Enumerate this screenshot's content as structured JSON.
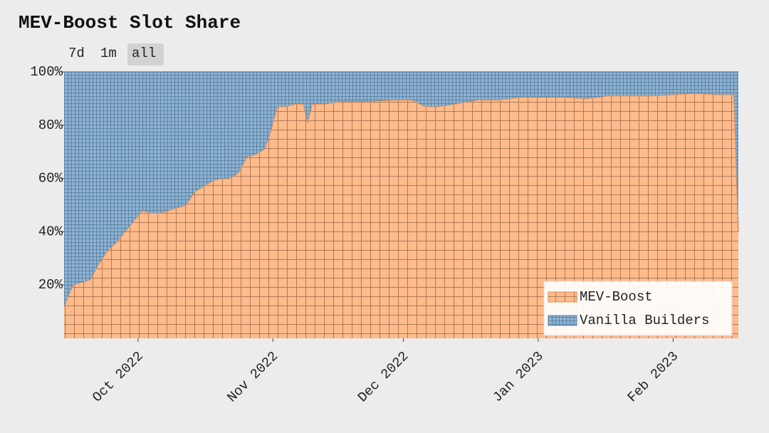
{
  "chart_data": {
    "type": "stacked_area",
    "title": "MEV-Boost Slot Share",
    "range_buttons": [
      "7d",
      "1m",
      "all"
    ],
    "x": [
      0,
      2,
      4,
      6,
      8,
      10,
      12,
      14,
      16,
      18,
      20,
      22,
      24,
      26,
      28,
      30,
      32,
      34,
      36,
      38,
      40,
      42,
      44,
      46,
      47,
      49,
      51,
      53,
      55,
      56,
      57,
      60,
      64,
      70,
      76,
      80,
      83,
      86,
      90,
      95,
      100,
      105,
      110,
      115,
      120,
      125,
      130,
      135,
      140,
      145,
      150,
      154,
      155
    ],
    "series": [
      {
        "name": "MEV-Boost",
        "color": "#ffbb8c",
        "line_color": "#e08a4e",
        "values": [
          12,
          20,
          21,
          22,
          28,
          33,
          36,
          40,
          44,
          48,
          47,
          47,
          48,
          49,
          50,
          55,
          57,
          59,
          60,
          60,
          62,
          68,
          69,
          71,
          75,
          87,
          87,
          88,
          88,
          81,
          88,
          88,
          89,
          89,
          89.5,
          89.5,
          87,
          87,
          88,
          89.5,
          89.5,
          90.5,
          90.5,
          90.5,
          90,
          91,
          91,
          91,
          91.5,
          92,
          91.5,
          91.5,
          40
        ]
      },
      {
        "name": "Vanilla Builders",
        "color": "#8db3d3",
        "line_color": "#5b87b0",
        "values": [
          88,
          80,
          79,
          78,
          72,
          67,
          64,
          60,
          56,
          52,
          53,
          53,
          52,
          51,
          50,
          45,
          43,
          41,
          40,
          40,
          38,
          32,
          31,
          29,
          25,
          13,
          13,
          12,
          12,
          19,
          12,
          12,
          11,
          11,
          10.5,
          10.5,
          13,
          13,
          12,
          10.5,
          10.5,
          9.5,
          9.5,
          9.5,
          10,
          9,
          9,
          9,
          8.5,
          8,
          8.5,
          8.5,
          60
        ]
      }
    ],
    "xlim": [
      0,
      155
    ],
    "xticks": [
      {
        "value": 17,
        "label": "Oct 2022"
      },
      {
        "value": 48,
        "label": "Nov 2022"
      },
      {
        "value": 78,
        "label": "Dec 2022"
      },
      {
        "value": 109,
        "label": "Jan 2023"
      },
      {
        "value": 140,
        "label": "Feb 2023"
      }
    ],
    "ylim": [
      0,
      100
    ],
    "yticks": [
      {
        "value": 20,
        "label": "20%"
      },
      {
        "value": 40,
        "label": "40%"
      },
      {
        "value": 60,
        "label": "60%"
      },
      {
        "value": 80,
        "label": "80%"
      },
      {
        "value": 100,
        "label": "100%"
      }
    ],
    "legend": "lower right"
  }
}
